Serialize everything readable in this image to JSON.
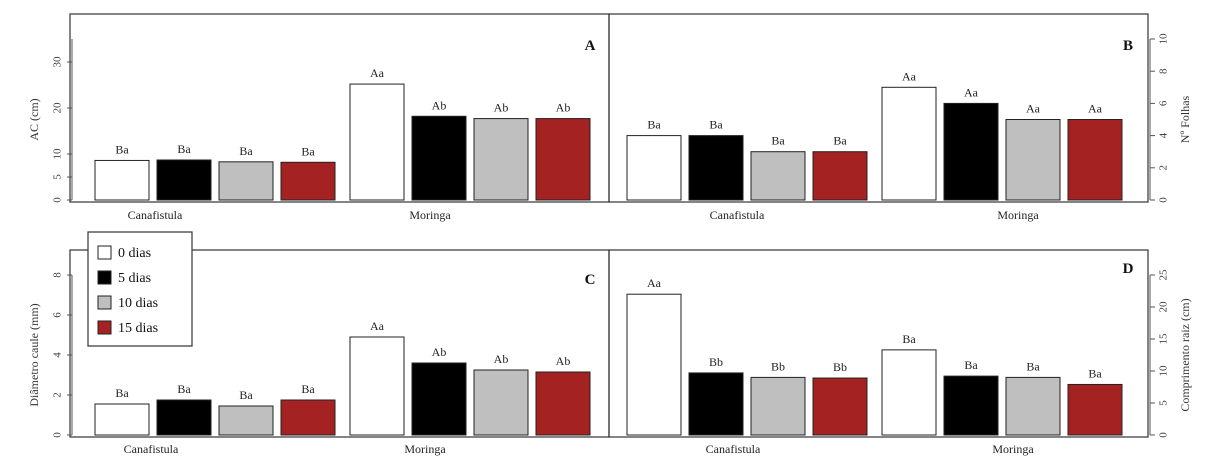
{
  "legend": {
    "entries": [
      "0 dias",
      "5 dias",
      "10 dias",
      "15 dias"
    ],
    "colors": [
      "#ffffff",
      "#000000",
      "#bfbfbf",
      "#a52222"
    ]
  },
  "chart_data": [
    {
      "type": "bar",
      "panel": "A",
      "categories": [
        "Canafistula",
        "Moringa"
      ],
      "ylabel": "AC (cm)",
      "ylim": [
        0,
        35
      ],
      "yticks": [
        0,
        5,
        10,
        20,
        30
      ],
      "series": [
        {
          "name": "0 dias",
          "values": [
            8.6,
            25.2
          ],
          "labels": [
            "Ba",
            "Aa"
          ]
        },
        {
          "name": "5 dias",
          "values": [
            8.7,
            18.2
          ],
          "labels": [
            "Ba",
            "Ab"
          ]
        },
        {
          "name": "10 dias",
          "values": [
            8.3,
            17.7
          ],
          "labels": [
            "Ba",
            "Ab"
          ]
        },
        {
          "name": "15 dias",
          "values": [
            8.2,
            17.7
          ],
          "labels": [
            "Ba",
            "Ab"
          ]
        }
      ]
    },
    {
      "type": "bar",
      "panel": "B",
      "categories": [
        "Canafistula",
        "Moringa"
      ],
      "ylabel": "Nº Folhas",
      "ylim": [
        0,
        10
      ],
      "yticks": [
        0,
        2,
        4,
        6,
        8,
        10
      ],
      "series": [
        {
          "name": "0 dias",
          "values": [
            4.0,
            7.0
          ],
          "labels": [
            "Ba",
            "Aa"
          ]
        },
        {
          "name": "5 dias",
          "values": [
            4.0,
            6.0
          ],
          "labels": [
            "Ba",
            "Aa"
          ]
        },
        {
          "name": "10 dias",
          "values": [
            3.0,
            5.0
          ],
          "labels": [
            "Ba",
            "Aa"
          ]
        },
        {
          "name": "15 dias",
          "values": [
            3.0,
            5.0
          ],
          "labels": [
            "Ba",
            "Aa"
          ]
        }
      ]
    },
    {
      "type": "bar",
      "panel": "C",
      "categories": [
        "Canafistula",
        "Moringa"
      ],
      "ylabel": "Diâmetro caule (mm)",
      "ylim": [
        0,
        8
      ],
      "yticks": [
        0,
        2,
        4,
        6,
        8
      ],
      "series": [
        {
          "name": "0 dias",
          "values": [
            1.55,
            4.9
          ],
          "labels": [
            "Ba",
            "Aa"
          ]
        },
        {
          "name": "5 dias",
          "values": [
            1.75,
            3.6
          ],
          "labels": [
            "Ba",
            "Ab"
          ]
        },
        {
          "name": "10 dias",
          "values": [
            1.45,
            3.25
          ],
          "labels": [
            "Ba",
            "Ab"
          ]
        },
        {
          "name": "15 dias",
          "values": [
            1.75,
            3.15
          ],
          "labels": [
            "Ba",
            "Ab"
          ]
        }
      ]
    },
    {
      "type": "bar",
      "panel": "D",
      "categories": [
        "Canafistula",
        "Moringa"
      ],
      "ylabel": "Comprimento raiz (cm)",
      "ylim": [
        0,
        25
      ],
      "yticks": [
        0,
        5,
        10,
        15,
        20,
        25
      ],
      "series": [
        {
          "name": "0 dias",
          "values": [
            22.0,
            13.3
          ],
          "labels": [
            "Aa",
            "Ba"
          ]
        },
        {
          "name": "5 dias",
          "values": [
            9.7,
            9.2
          ],
          "labels": [
            "Bb",
            "Ba"
          ]
        },
        {
          "name": "10 dias",
          "values": [
            9.0,
            9.0
          ],
          "labels": [
            "Bb",
            "Ba"
          ]
        },
        {
          "name": "15 dias",
          "values": [
            8.9,
            7.9
          ],
          "labels": [
            "Bb",
            "Ba"
          ]
        }
      ]
    }
  ]
}
